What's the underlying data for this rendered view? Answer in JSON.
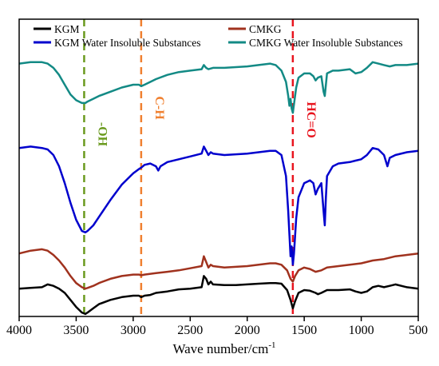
{
  "chart_data": {
    "type": "line",
    "xlabel": "Wave number/cm",
    "xlabel_superscript": "-1",
    "xlim": [
      4000,
      500
    ],
    "x_ticks": [
      4000,
      3500,
      3000,
      2500,
      2000,
      1500,
      1000,
      500
    ],
    "x_tick_labels": [
      "4000",
      "3500",
      "3000",
      "2500",
      "2000",
      "1500",
      "1000",
      "500"
    ],
    "y_ticks_shown": false,
    "grid": false,
    "legend_position": "top",
    "series": [
      {
        "name": "KGM",
        "color": "#000000",
        "points": [
          [
            4000,
            0.05
          ],
          [
            3900,
            0.055
          ],
          [
            3800,
            0.06
          ],
          [
            3750,
            0.08
          ],
          [
            3700,
            0.07
          ],
          [
            3650,
            0.05
          ],
          [
            3600,
            0.02
          ],
          [
            3550,
            -0.03
          ],
          [
            3500,
            -0.08
          ],
          [
            3450,
            -0.12
          ],
          [
            3420,
            -0.13
          ],
          [
            3400,
            -0.12
          ],
          [
            3350,
            -0.09
          ],
          [
            3300,
            -0.06
          ],
          [
            3200,
            -0.03
          ],
          [
            3100,
            -0.01
          ],
          [
            3000,
            0.0
          ],
          [
            2950,
            0.0
          ],
          [
            2930,
            -0.01
          ],
          [
            2900,
            0.0
          ],
          [
            2850,
            0.005
          ],
          [
            2800,
            0.02
          ],
          [
            2700,
            0.03
          ],
          [
            2600,
            0.045
          ],
          [
            2500,
            0.05
          ],
          [
            2400,
            0.06
          ],
          [
            2380,
            0.14
          ],
          [
            2360,
            0.12
          ],
          [
            2340,
            0.08
          ],
          [
            2320,
            0.1
          ],
          [
            2300,
            0.08
          ],
          [
            2200,
            0.075
          ],
          [
            2100,
            0.075
          ],
          [
            2000,
            0.08
          ],
          [
            1900,
            0.085
          ],
          [
            1800,
            0.09
          ],
          [
            1750,
            0.09
          ],
          [
            1700,
            0.085
          ],
          [
            1650,
            0.04
          ],
          [
            1620,
            -0.03
          ],
          [
            1600,
            -0.09
          ],
          [
            1580,
            -0.04
          ],
          [
            1550,
            0.02
          ],
          [
            1500,
            0.04
          ],
          [
            1450,
            0.035
          ],
          [
            1400,
            0.02
          ],
          [
            1380,
            0.01
          ],
          [
            1350,
            0.02
          ],
          [
            1300,
            0.04
          ],
          [
            1200,
            0.04
          ],
          [
            1100,
            0.045
          ],
          [
            1050,
            0.03
          ],
          [
            1000,
            0.02
          ],
          [
            950,
            0.03
          ],
          [
            900,
            0.06
          ],
          [
            850,
            0.07
          ],
          [
            800,
            0.06
          ],
          [
            750,
            0.07
          ],
          [
            700,
            0.08
          ],
          [
            600,
            0.06
          ],
          [
            500,
            0.05
          ]
        ]
      },
      {
        "name": "CMKG",
        "color": "#a0321e",
        "points": [
          [
            4000,
            0.3
          ],
          [
            3900,
            0.32
          ],
          [
            3800,
            0.33
          ],
          [
            3750,
            0.32
          ],
          [
            3700,
            0.29
          ],
          [
            3650,
            0.25
          ],
          [
            3600,
            0.2
          ],
          [
            3550,
            0.14
          ],
          [
            3500,
            0.09
          ],
          [
            3450,
            0.06
          ],
          [
            3420,
            0.05
          ],
          [
            3400,
            0.055
          ],
          [
            3350,
            0.07
          ],
          [
            3300,
            0.09
          ],
          [
            3200,
            0.12
          ],
          [
            3100,
            0.14
          ],
          [
            3000,
            0.15
          ],
          [
            2950,
            0.15
          ],
          [
            2930,
            0.145
          ],
          [
            2900,
            0.15
          ],
          [
            2800,
            0.16
          ],
          [
            2700,
            0.17
          ],
          [
            2600,
            0.18
          ],
          [
            2500,
            0.195
          ],
          [
            2400,
            0.21
          ],
          [
            2380,
            0.28
          ],
          [
            2360,
            0.24
          ],
          [
            2340,
            0.2
          ],
          [
            2320,
            0.22
          ],
          [
            2300,
            0.21
          ],
          [
            2200,
            0.2
          ],
          [
            2100,
            0.205
          ],
          [
            2000,
            0.21
          ],
          [
            1900,
            0.22
          ],
          [
            1800,
            0.23
          ],
          [
            1750,
            0.23
          ],
          [
            1700,
            0.22
          ],
          [
            1650,
            0.18
          ],
          [
            1620,
            0.12
          ],
          [
            1600,
            0.1
          ],
          [
            1580,
            0.14
          ],
          [
            1550,
            0.18
          ],
          [
            1500,
            0.2
          ],
          [
            1450,
            0.19
          ],
          [
            1400,
            0.17
          ],
          [
            1350,
            0.18
          ],
          [
            1300,
            0.2
          ],
          [
            1200,
            0.21
          ],
          [
            1100,
            0.22
          ],
          [
            1000,
            0.23
          ],
          [
            900,
            0.25
          ],
          [
            800,
            0.26
          ],
          [
            700,
            0.28
          ],
          [
            600,
            0.29
          ],
          [
            500,
            0.3
          ]
        ]
      },
      {
        "name": "KGM Water Insoluble Substances",
        "color": "#0000cd",
        "points": [
          [
            4000,
            1.05
          ],
          [
            3900,
            1.06
          ],
          [
            3800,
            1.05
          ],
          [
            3750,
            1.04
          ],
          [
            3700,
            1.0
          ],
          [
            3650,
            0.92
          ],
          [
            3600,
            0.8
          ],
          [
            3550,
            0.66
          ],
          [
            3500,
            0.54
          ],
          [
            3450,
            0.46
          ],
          [
            3420,
            0.45
          ],
          [
            3400,
            0.46
          ],
          [
            3350,
            0.5
          ],
          [
            3300,
            0.56
          ],
          [
            3200,
            0.68
          ],
          [
            3100,
            0.79
          ],
          [
            3000,
            0.87
          ],
          [
            2950,
            0.9
          ],
          [
            2930,
            0.91
          ],
          [
            2900,
            0.93
          ],
          [
            2850,
            0.94
          ],
          [
            2800,
            0.92
          ],
          [
            2780,
            0.89
          ],
          [
            2760,
            0.92
          ],
          [
            2700,
            0.95
          ],
          [
            2600,
            0.97
          ],
          [
            2500,
            0.99
          ],
          [
            2400,
            1.01
          ],
          [
            2380,
            1.06
          ],
          [
            2360,
            1.03
          ],
          [
            2340,
            1.0
          ],
          [
            2320,
            1.02
          ],
          [
            2300,
            1.01
          ],
          [
            2200,
            1.0
          ],
          [
            2100,
            1.005
          ],
          [
            2000,
            1.01
          ],
          [
            1900,
            1.02
          ],
          [
            1800,
            1.03
          ],
          [
            1750,
            1.03
          ],
          [
            1700,
            1.0
          ],
          [
            1660,
            0.85
          ],
          [
            1640,
            0.6
          ],
          [
            1620,
            0.28
          ],
          [
            1610,
            0.35
          ],
          [
            1600,
            0.22
          ],
          [
            1590,
            0.3
          ],
          [
            1570,
            0.55
          ],
          [
            1550,
            0.7
          ],
          [
            1500,
            0.8
          ],
          [
            1450,
            0.82
          ],
          [
            1420,
            0.8
          ],
          [
            1400,
            0.72
          ],
          [
            1380,
            0.76
          ],
          [
            1350,
            0.8
          ],
          [
            1330,
            0.6
          ],
          [
            1320,
            0.5
          ],
          [
            1310,
            0.7
          ],
          [
            1300,
            0.85
          ],
          [
            1250,
            0.92
          ],
          [
            1200,
            0.94
          ],
          [
            1100,
            0.95
          ],
          [
            1050,
            0.96
          ],
          [
            1000,
            0.97
          ],
          [
            950,
            1.0
          ],
          [
            900,
            1.05
          ],
          [
            850,
            1.04
          ],
          [
            800,
            1.0
          ],
          [
            770,
            0.92
          ],
          [
            750,
            0.98
          ],
          [
            700,
            1.0
          ],
          [
            600,
            1.02
          ],
          [
            500,
            1.03
          ]
        ]
      },
      {
        "name": "CMKG Water Insoluble Substances",
        "color": "#138a85",
        "points": [
          [
            4000,
            1.65
          ],
          [
            3900,
            1.66
          ],
          [
            3800,
            1.66
          ],
          [
            3750,
            1.65
          ],
          [
            3700,
            1.62
          ],
          [
            3650,
            1.57
          ],
          [
            3600,
            1.5
          ],
          [
            3550,
            1.43
          ],
          [
            3500,
            1.39
          ],
          [
            3450,
            1.37
          ],
          [
            3420,
            1.37
          ],
          [
            3400,
            1.38
          ],
          [
            3350,
            1.4
          ],
          [
            3300,
            1.42
          ],
          [
            3200,
            1.45
          ],
          [
            3100,
            1.48
          ],
          [
            3000,
            1.5
          ],
          [
            2950,
            1.5
          ],
          [
            2930,
            1.49
          ],
          [
            2900,
            1.5
          ],
          [
            2850,
            1.52
          ],
          [
            2800,
            1.54
          ],
          [
            2700,
            1.57
          ],
          [
            2600,
            1.59
          ],
          [
            2500,
            1.6
          ],
          [
            2400,
            1.61
          ],
          [
            2380,
            1.64
          ],
          [
            2360,
            1.62
          ],
          [
            2340,
            1.61
          ],
          [
            2300,
            1.62
          ],
          [
            2200,
            1.62
          ],
          [
            2100,
            1.625
          ],
          [
            2000,
            1.63
          ],
          [
            1900,
            1.64
          ],
          [
            1800,
            1.65
          ],
          [
            1750,
            1.64
          ],
          [
            1700,
            1.6
          ],
          [
            1660,
            1.52
          ],
          [
            1640,
            1.42
          ],
          [
            1630,
            1.35
          ],
          [
            1620,
            1.4
          ],
          [
            1610,
            1.33
          ],
          [
            1600,
            1.3
          ],
          [
            1590,
            1.36
          ],
          [
            1570,
            1.48
          ],
          [
            1550,
            1.55
          ],
          [
            1500,
            1.58
          ],
          [
            1450,
            1.58
          ],
          [
            1420,
            1.56
          ],
          [
            1400,
            1.53
          ],
          [
            1380,
            1.55
          ],
          [
            1350,
            1.56
          ],
          [
            1330,
            1.45
          ],
          [
            1320,
            1.42
          ],
          [
            1310,
            1.5
          ],
          [
            1300,
            1.58
          ],
          [
            1250,
            1.6
          ],
          [
            1200,
            1.6
          ],
          [
            1100,
            1.61
          ],
          [
            1050,
            1.58
          ],
          [
            1000,
            1.59
          ],
          [
            950,
            1.62
          ],
          [
            900,
            1.66
          ],
          [
            850,
            1.65
          ],
          [
            800,
            1.64
          ],
          [
            750,
            1.63
          ],
          [
            700,
            1.64
          ],
          [
            600,
            1.64
          ],
          [
            500,
            1.65
          ]
        ]
      }
    ],
    "reference_lines": [
      {
        "x": 3430,
        "color": "#6a9a1e",
        "label": "-OH"
      },
      {
        "x": 2930,
        "color": "#f08030",
        "label": "C-H"
      },
      {
        "x": 1600,
        "color": "#e8141e",
        "label": "HC=O"
      }
    ]
  }
}
